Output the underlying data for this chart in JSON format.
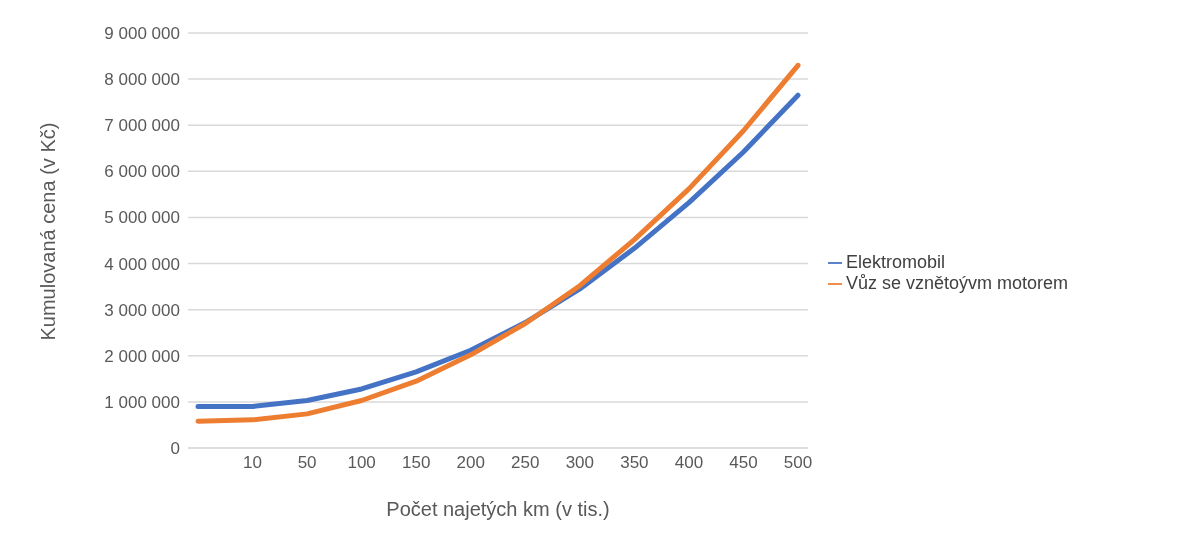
{
  "chart_data": {
    "type": "line",
    "xlabel": "Počet najetých km (v tis.)",
    "ylabel": "Kumulovaná cena (v Kč)",
    "categories": [
      null,
      "10",
      "50",
      "100",
      "150",
      "200",
      "250",
      "300",
      "350",
      "400",
      "450",
      "500"
    ],
    "series": [
      {
        "name": "Elektromobil",
        "color": "#4472c4",
        "values": [
          900000,
          900000,
          1030000,
          1280000,
          1650000,
          2120000,
          2720000,
          3450000,
          4330000,
          5320000,
          6420000,
          7650000
        ]
      },
      {
        "name": "Vůz se vznětoývm motorem",
        "color": "#ed7d31",
        "values": [
          580000,
          610000,
          740000,
          1030000,
          1450000,
          2020000,
          2700000,
          3520000,
          4520000,
          5620000,
          6880000,
          8300000
        ]
      }
    ],
    "ylim": [
      0,
      9000000
    ],
    "yticks": [
      0,
      {
        "value": 1000000,
        "label": "1 000 000"
      },
      {
        "value": 2000000,
        "label": "2 000 000"
      },
      {
        "value": 3000000,
        "label": "3 000 000"
      },
      {
        "value": 4000000,
        "label": "4 000 000"
      },
      {
        "value": 5000000,
        "label": "5 000 000"
      },
      {
        "value": 6000000,
        "label": "6 000 000"
      },
      {
        "value": 7000000,
        "label": "7 000 000"
      },
      {
        "value": 8000000,
        "label": "8 000 000"
      },
      {
        "value": 9000000,
        "label": "9 000 000"
      }
    ],
    "grid": "y",
    "legend": "right",
    "marker": "none",
    "line_style": "solid"
  }
}
